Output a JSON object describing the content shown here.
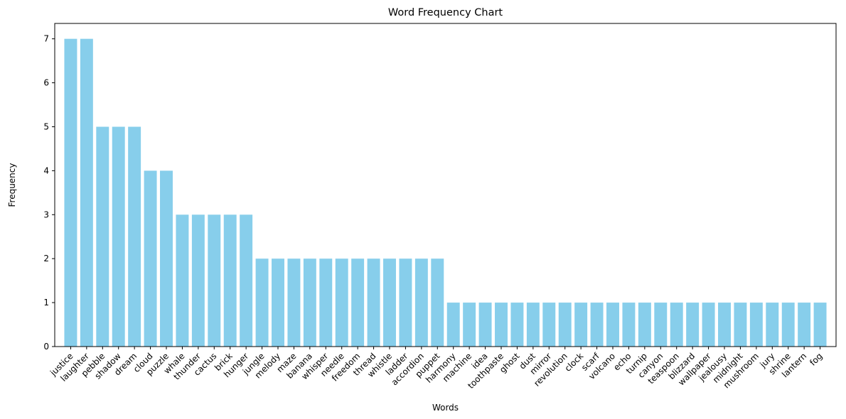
{
  "chart_data": {
    "type": "bar",
    "title": "Word Frequency Chart",
    "xlabel": "Words",
    "ylabel": "Frequency",
    "ylim": [
      0,
      7.35
    ],
    "yticks": [
      0,
      1,
      2,
      3,
      4,
      5,
      6,
      7
    ],
    "bar_color": "#87ceeb",
    "grid": false,
    "categories": [
      "justice",
      "laughter",
      "pebble",
      "shadow",
      "dream",
      "cloud",
      "puzzle",
      "whale",
      "thunder",
      "cactus",
      "brick",
      "hunger",
      "jungle",
      "melody",
      "maze",
      "banana",
      "whisper",
      "needle",
      "freedom",
      "thread",
      "whistle",
      "ladder",
      "accordion",
      "puppet",
      "harmony",
      "machine",
      "idea",
      "toothpaste",
      "ghost",
      "dust",
      "mirror",
      "revolution",
      "clock",
      "scarf",
      "volcano",
      "echo",
      "turnip",
      "canyon",
      "teaspoon",
      "blizzard",
      "wallpaper",
      "jealousy",
      "midnight",
      "mushroom",
      "jury",
      "shrine",
      "lantern",
      "fog"
    ],
    "values": [
      7,
      7,
      5,
      5,
      5,
      4,
      4,
      3,
      3,
      3,
      3,
      3,
      2,
      2,
      2,
      2,
      2,
      2,
      2,
      2,
      2,
      2,
      2,
      2,
      1,
      1,
      1,
      1,
      1,
      1,
      1,
      1,
      1,
      1,
      1,
      1,
      1,
      1,
      1,
      1,
      1,
      1,
      1,
      1,
      1,
      1,
      1,
      1
    ]
  }
}
